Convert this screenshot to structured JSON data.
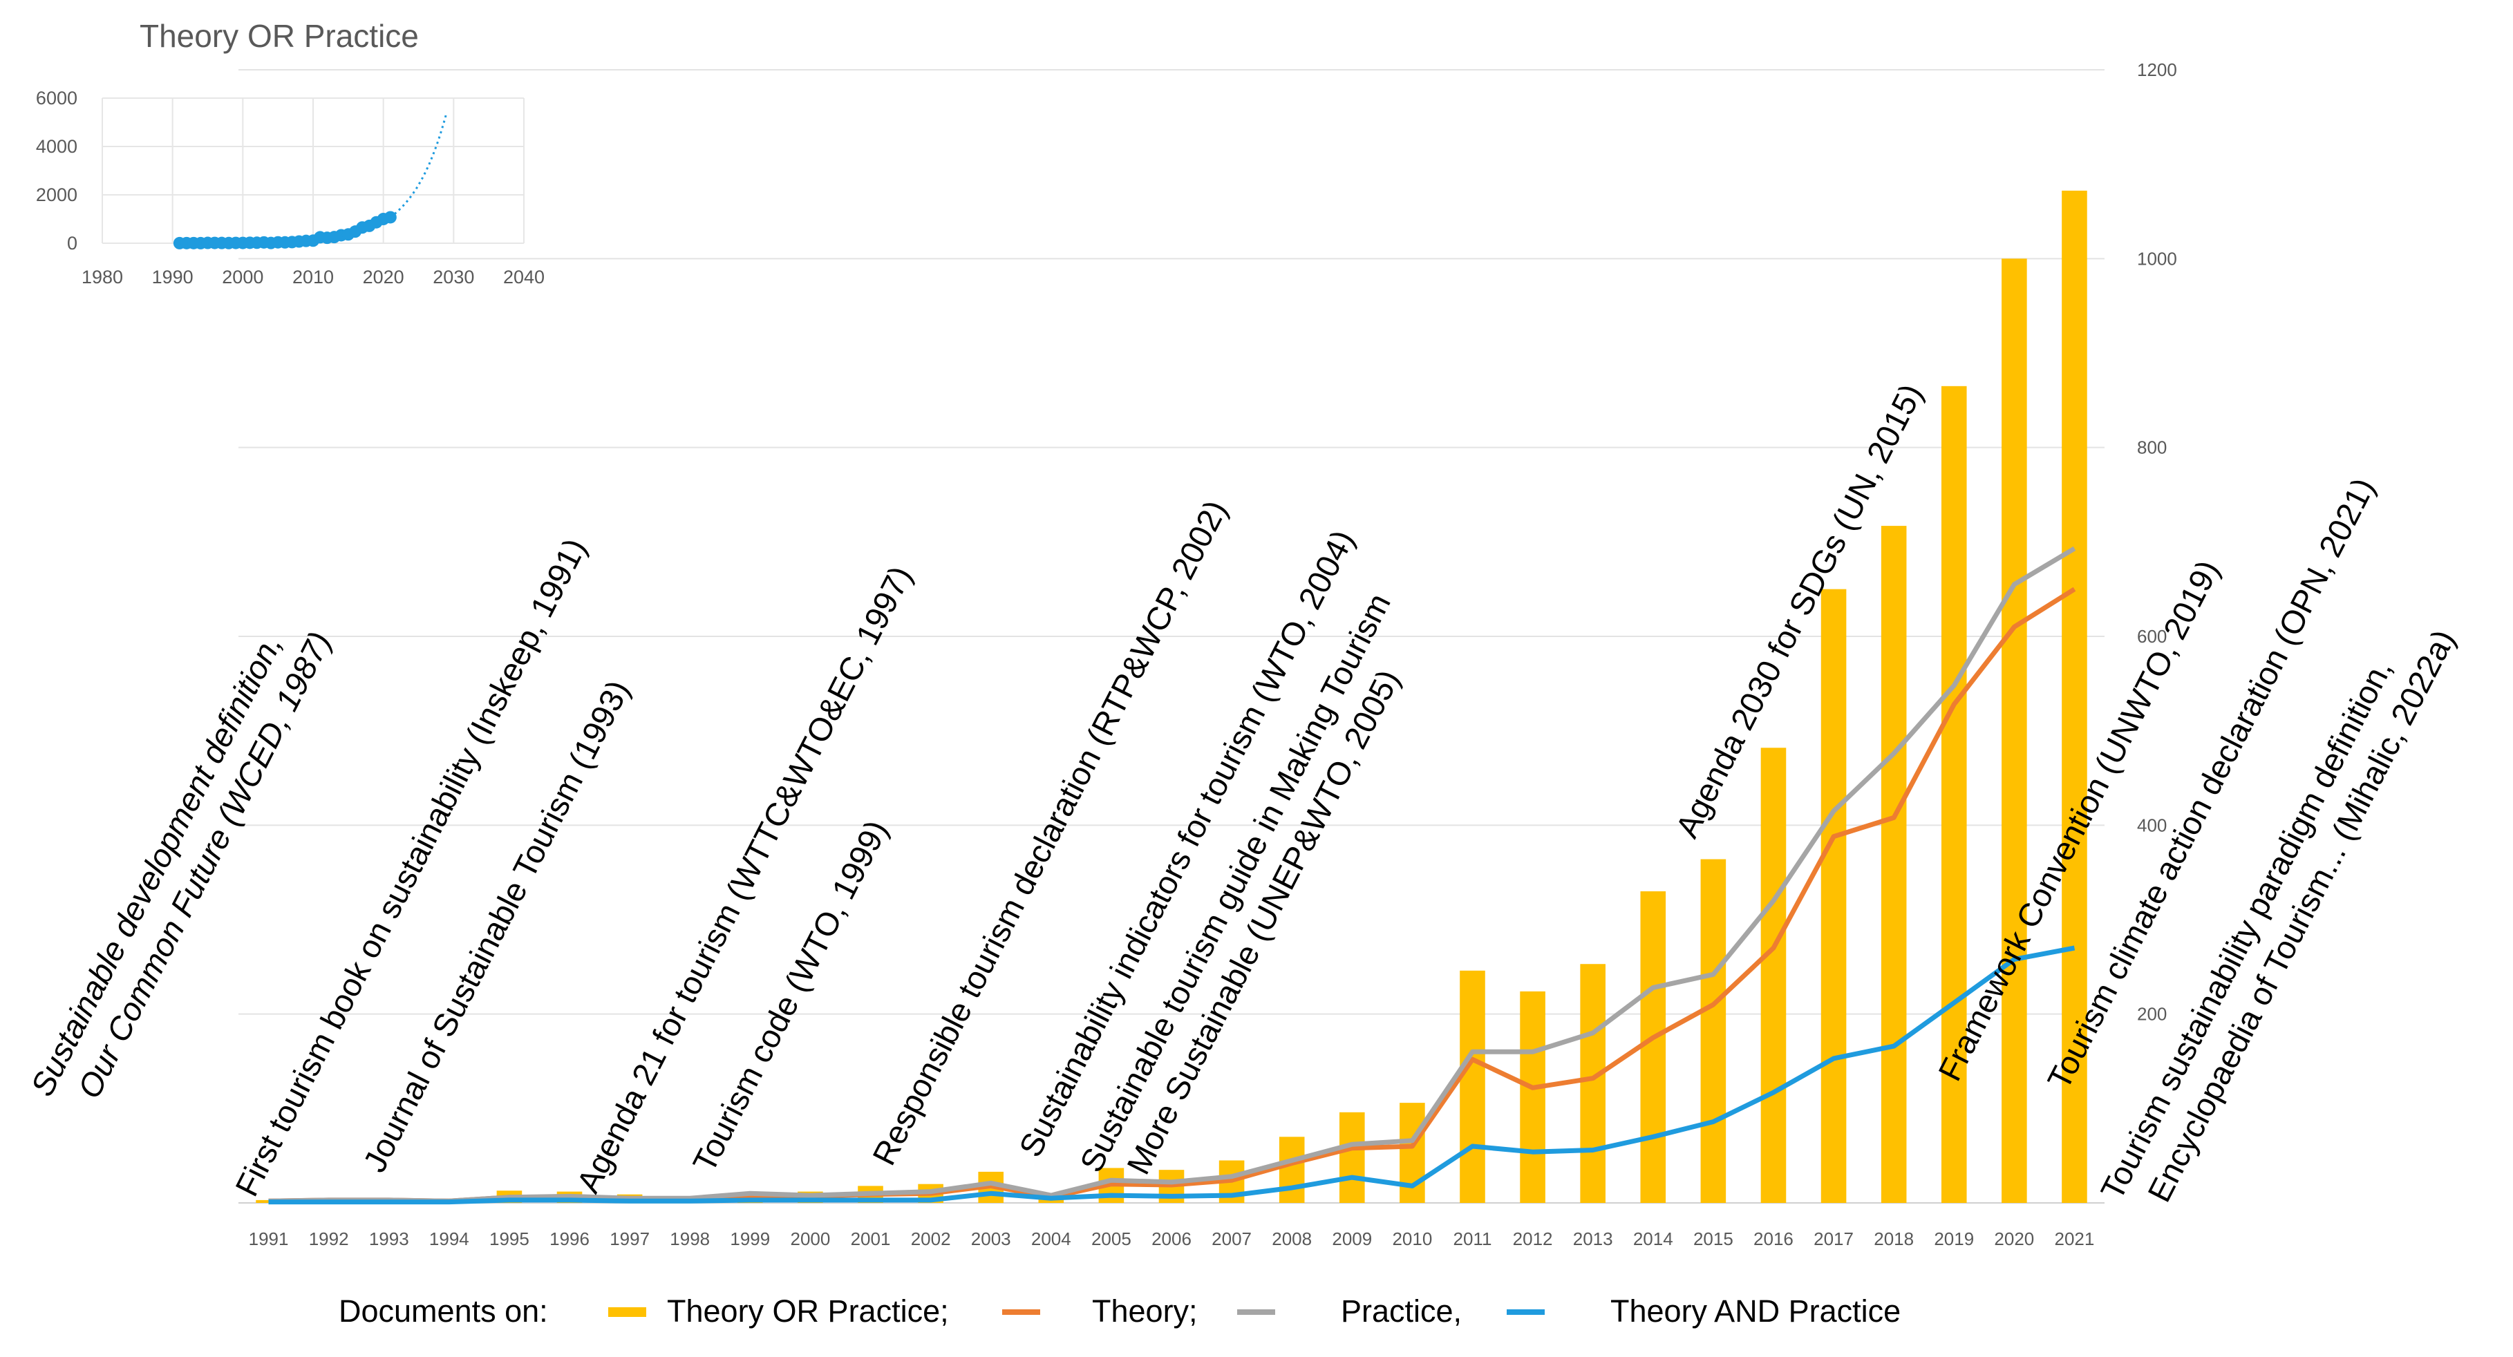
{
  "chart_data": [
    {
      "type": "bar+line",
      "title": "",
      "xlabel": "",
      "ylabel": "",
      "ylim": [
        0,
        1200
      ],
      "y_ticks": [
        200,
        400,
        600,
        800,
        1000,
        1200
      ],
      "categories": [
        "1991",
        "1992",
        "1993",
        "1994",
        "1995",
        "1996",
        "1997",
        "1998",
        "1999",
        "2000",
        "2001",
        "2002",
        "2003",
        "2004",
        "2005",
        "2006",
        "2007",
        "2008",
        "2009",
        "2010",
        "2011",
        "2012",
        "2013",
        "2014",
        "2015",
        "2016",
        "2017",
        "2018",
        "2019",
        "2020",
        "2021"
      ],
      "series": [
        {
          "name": "Theory OR Practice;",
          "kind": "bar",
          "color": "#FFC000",
          "values": [
            3,
            4,
            4,
            3,
            13,
            12,
            9,
            7,
            11,
            12,
            18,
            20,
            33,
            10,
            37,
            35,
            45,
            70,
            96,
            106,
            246,
            224,
            253,
            330,
            364,
            482,
            650,
            717,
            865,
            1000,
            1072
          ]
        },
        {
          "name": "Theory;",
          "kind": "line",
          "color": "#ED7D31",
          "values": [
            2,
            3,
            3,
            2,
            6,
            6,
            5,
            4,
            7,
            7,
            9,
            10,
            18,
            6,
            20,
            19,
            24,
            42,
            58,
            60,
            152,
            122,
            132,
            175,
            210,
            270,
            388,
            408,
            528,
            610,
            650
          ]
        },
        {
          "name": "Practice,",
          "kind": "line",
          "color": "#A5A5A5",
          "values": [
            2,
            3,
            3,
            2,
            6,
            7,
            5,
            5,
            10,
            8,
            10,
            12,
            21,
            8,
            24,
            22,
            28,
            45,
            62,
            66,
            160,
            160,
            180,
            228,
            242,
            320,
            415,
            476,
            548,
            655,
            693
          ]
        },
        {
          "name": "Theory AND Practice",
          "kind": "line",
          "color": "#1F9BDE",
          "values": [
            1,
            1,
            1,
            1,
            3,
            3,
            2,
            2,
            3,
            3,
            3,
            3,
            10,
            5,
            8,
            7,
            8,
            16,
            27,
            18,
            60,
            54,
            56,
            70,
            86,
            117,
            153,
            166,
            212,
            258,
            270
          ]
        }
      ],
      "legend": {
        "prefix": "Documents on:",
        "position": "bottom"
      },
      "annotations": [
        {
          "year": "1991",
          "lines": [
            "Sustainable development definition,",
            "Our Common Future (WCED, 1987)"
          ],
          "italic": true
        },
        {
          "year": "1993",
          "lines": [
            "First tourism book on sustainability (Inskeep, 1991)"
          ]
        },
        {
          "year": "1995",
          "lines": [
            "Journal of Sustainable Tourism (1993)"
          ]
        },
        {
          "year": "1998",
          "lines": [
            "Agenda 21 for tourism (WTTC&WTO&EC, 1997)"
          ]
        },
        {
          "year": "2000",
          "lines": [
            "Tourism code (WTO, 1999)"
          ]
        },
        {
          "year": "2003",
          "lines": [
            "Responsible  tourism declaration (RTP&WCP, 2002)"
          ]
        },
        {
          "year": "2005",
          "lines": [
            "Sustainability indicators for tourism (WTO, 2004)"
          ]
        },
        {
          "year": "2006",
          "lines": [
            "Sustainable tourism guide in Making Tourism",
            "More Sustainable (UNEP&WTO, 2005)"
          ]
        },
        {
          "year": "2016",
          "lines": [
            "Agenda 2030 for SDGs (UN, 2015)"
          ]
        },
        {
          "year": "2019",
          "lines": [
            "Framework Convention (UNWTO, 2019)"
          ]
        },
        {
          "year": "2021",
          "lines": [
            "Tourism climate action declaration (OPN, 2021)"
          ]
        },
        {
          "year": "2021b",
          "lines": [
            "Tourism sustainability paradigm definition,",
            "Encyclopaedia of Tourism... (Mihalic, 2022a)"
          ]
        }
      ]
    },
    {
      "type": "scatter",
      "title": "Theory OR Practice",
      "xlim": [
        1980,
        2040
      ],
      "ylim": [
        0,
        6000
      ],
      "x_ticks": [
        1980,
        1990,
        2000,
        2010,
        2020,
        2030,
        2040
      ],
      "y_ticks": [
        0,
        2000,
        4000,
        6000
      ],
      "x": [
        1991,
        1992,
        1993,
        1994,
        1995,
        1996,
        1997,
        1998,
        1999,
        2000,
        2001,
        2002,
        2003,
        2004,
        2005,
        2006,
        2007,
        2008,
        2009,
        2010,
        2011,
        2012,
        2013,
        2014,
        2015,
        2016,
        2017,
        2018,
        2019,
        2020,
        2021
      ],
      "y": [
        3,
        4,
        4,
        3,
        13,
        12,
        9,
        7,
        11,
        12,
        18,
        20,
        33,
        10,
        37,
        35,
        45,
        70,
        96,
        106,
        246,
        224,
        253,
        330,
        364,
        482,
        650,
        717,
        865,
        1000,
        1072
      ],
      "trendline": {
        "type": "exponential",
        "from": 2021,
        "to": 2029,
        "end_value": 5400
      },
      "color": "#1F9BDE"
    }
  ]
}
